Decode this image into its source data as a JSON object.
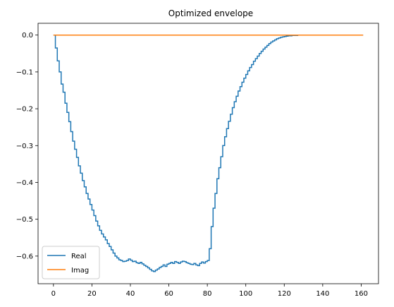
{
  "chart_data": {
    "type": "line",
    "title": "Optimized envelope",
    "xlabel": "",
    "ylabel": "",
    "xlim": [
      -8,
      169
    ],
    "ylim": [
      -0.675,
      0.032
    ],
    "xticks": [
      0,
      20,
      40,
      60,
      80,
      100,
      120,
      140,
      160
    ],
    "yticks": [
      0.0,
      -0.1,
      -0.2,
      -0.3,
      -0.4,
      -0.5,
      -0.6
    ],
    "ytick_labels": [
      "0.0",
      "−0.1",
      "−0.2",
      "−0.3",
      "−0.4",
      "−0.5",
      "−0.6"
    ],
    "grid": false,
    "legend_position": "lower-left",
    "step": true,
    "series": [
      {
        "name": "Real",
        "color": "#1f77b4",
        "x": [
          0,
          1,
          2,
          3,
          4,
          5,
          6,
          7,
          8,
          9,
          10,
          11,
          12,
          13,
          14,
          15,
          16,
          17,
          18,
          19,
          20,
          21,
          22,
          23,
          24,
          25,
          26,
          27,
          28,
          29,
          30,
          31,
          32,
          33,
          34,
          35,
          36,
          37,
          38,
          39,
          40,
          41,
          42,
          43,
          44,
          45,
          46,
          47,
          48,
          49,
          50,
          51,
          52,
          53,
          54,
          55,
          56,
          57,
          58,
          59,
          60,
          61,
          62,
          63,
          64,
          65,
          66,
          67,
          68,
          69,
          70,
          71,
          72,
          73,
          74,
          75,
          76,
          77,
          78,
          79,
          80,
          81,
          82,
          83,
          84,
          85,
          86,
          87,
          88,
          89,
          90,
          91,
          92,
          93,
          94,
          95,
          96,
          97,
          98,
          99,
          100,
          101,
          102,
          103,
          104,
          105,
          106,
          107,
          108,
          109,
          110,
          111,
          112,
          113,
          114,
          115,
          116,
          117,
          118,
          119,
          120,
          121,
          122,
          123,
          124,
          125,
          126,
          127,
          128,
          129,
          130,
          131,
          132,
          133,
          134,
          135,
          136,
          137,
          138,
          139,
          140,
          141,
          142,
          143,
          144,
          145,
          146,
          147,
          148,
          149,
          150,
          151,
          152,
          153,
          154,
          155,
          156,
          157,
          158,
          159,
          160,
          161
        ],
        "values": [
          0.0,
          -0.035,
          -0.07,
          -0.1,
          -0.133,
          -0.155,
          -0.185,
          -0.21,
          -0.235,
          -0.262,
          -0.288,
          -0.31,
          -0.332,
          -0.355,
          -0.375,
          -0.395,
          -0.412,
          -0.43,
          -0.445,
          -0.46,
          -0.475,
          -0.49,
          -0.505,
          -0.518,
          -0.53,
          -0.54,
          -0.548,
          -0.556,
          -0.566,
          -0.574,
          -0.583,
          -0.592,
          -0.6,
          -0.605,
          -0.61,
          -0.612,
          -0.615,
          -0.614,
          -0.612,
          -0.608,
          -0.611,
          -0.615,
          -0.614,
          -0.618,
          -0.62,
          -0.617,
          -0.621,
          -0.625,
          -0.628,
          -0.632,
          -0.636,
          -0.64,
          -0.642,
          -0.638,
          -0.635,
          -0.631,
          -0.628,
          -0.624,
          -0.628,
          -0.622,
          -0.62,
          -0.617,
          -0.62,
          -0.615,
          -0.617,
          -0.62,
          -0.616,
          -0.614,
          -0.615,
          -0.618,
          -0.62,
          -0.622,
          -0.623,
          -0.62,
          -0.624,
          -0.626,
          -0.62,
          -0.616,
          -0.619,
          -0.615,
          -0.612,
          -0.58,
          -0.52,
          -0.47,
          -0.43,
          -0.39,
          -0.36,
          -0.33,
          -0.3,
          -0.276,
          -0.254,
          -0.234,
          -0.215,
          -0.197,
          -0.181,
          -0.166,
          -0.152,
          -0.14,
          -0.128,
          -0.117,
          -0.107,
          -0.097,
          -0.088,
          -0.08,
          -0.071,
          -0.064,
          -0.057,
          -0.05,
          -0.044,
          -0.038,
          -0.033,
          -0.028,
          -0.023,
          -0.019,
          -0.016,
          -0.013,
          -0.01,
          -0.008,
          -0.006,
          -0.005,
          -0.004,
          -0.003,
          -0.002,
          -0.002,
          -0.001,
          -0.001,
          -0.001,
          0.0,
          0.0,
          0.0,
          0.0,
          0.0,
          0.0,
          0.0,
          0.0,
          0.0,
          0.0,
          0.0,
          0.0,
          0.0,
          0.0,
          0.0,
          0.0,
          0.0,
          0.0,
          0.0,
          0.0,
          0.0,
          0.0,
          0.0,
          0.0,
          0.0,
          0.0,
          0.0,
          0.0,
          0.0,
          0.0,
          0.0,
          0.0,
          0.0,
          0.0,
          0.0
        ]
      },
      {
        "name": "Imag",
        "color": "#ff7f0e",
        "x": [
          0,
          161
        ],
        "values": [
          0.0,
          0.0
        ]
      }
    ]
  }
}
